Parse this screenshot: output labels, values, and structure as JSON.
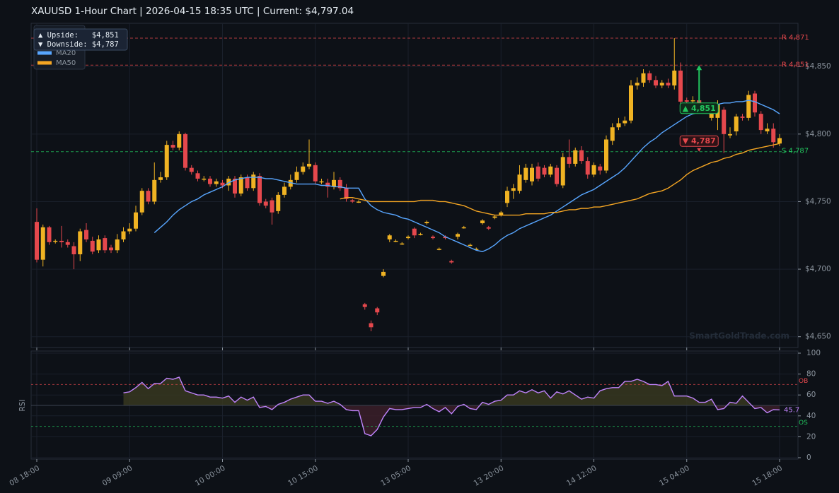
{
  "title": "XAUUSD  1-Hour Chart  |  2026-04-15 18:35 UTC  |  Current: $4,797.04",
  "watermark": "SmartGoldTrade.com",
  "info": [
    "▲ Upside:   $4,851",
    "▼ Downside: $4,787"
  ],
  "chart_data": [
    {
      "type": "candlestick",
      "categories": [
        "08 18:00",
        null,
        null,
        null,
        null,
        null,
        null,
        null,
        null,
        null,
        null,
        null,
        null,
        null,
        null,
        "09 09:00",
        null,
        null,
        null,
        null,
        null,
        null,
        null,
        null,
        null,
        null,
        null,
        null,
        null,
        null,
        "10 00:00",
        null,
        null,
        null,
        null,
        null,
        null,
        null,
        null,
        null,
        null,
        null,
        null,
        null,
        null,
        "10 15:00",
        null,
        null,
        null,
        null,
        null,
        null,
        null,
        null,
        null,
        null,
        null,
        null,
        null,
        null,
        "13 05:00",
        null,
        null,
        null,
        null,
        null,
        null,
        null,
        null,
        null,
        null,
        null,
        null,
        null,
        null,
        "13 20:00",
        null,
        null,
        null,
        null,
        null,
        null,
        null,
        null,
        null,
        null,
        null,
        null,
        null,
        null,
        "14 12:00",
        null,
        null,
        null,
        null,
        null,
        null,
        null,
        null,
        null,
        null,
        null,
        null,
        null,
        null,
        "15 04:00",
        null,
        null,
        null,
        null,
        null,
        null,
        null,
        null,
        null,
        null,
        null,
        null,
        null,
        null,
        "15 18:00"
      ],
      "open": [
        4735,
        4707,
        4731,
        4721,
        4721,
        4720,
        4717,
        4711,
        4729,
        4721,
        4714,
        4723,
        4716,
        4714,
        4722,
        4728,
        4730,
        4742,
        4758,
        4750,
        4766,
        4768,
        4792,
        4790,
        4800,
        4775,
        4771,
        4767,
        4767,
        4763,
        4764,
        4762,
        4767,
        4756,
        4768,
        4760,
        4769,
        4750,
        4751,
        4743,
        4755,
        4761,
        4766,
        4772,
        4776,
        4777,
        4765,
        4764,
        4761,
        4766,
        4760,
        4751,
        4750,
        4674,
        4660,
        4671,
        4695,
        4722,
        4721,
        4719,
        4723,
        4730,
        4726,
        4734,
        4724,
        4715,
        4724,
        4706,
        4724,
        4731,
        4718,
        4715,
        4734,
        4731,
        4738,
        4740,
        4749,
        4758,
        4758,
        4766,
        4765,
        4776,
        4775,
        4770,
        4775,
        4762,
        4783,
        4778,
        4788,
        4780,
        4770,
        4776,
        4773,
        4795,
        4805,
        4808,
        4810,
        4836,
        4838,
        4845,
        4840,
        4836,
        4838,
        4836,
        4847,
        4825,
        4825,
        4825,
        4822,
        4812,
        4812,
        4818,
        4799,
        4802,
        4813,
        4812,
        4830,
        4815,
        4802,
        4804,
        4793
      ],
      "high": [
        4745,
        4733,
        4732,
        4722,
        4732,
        4722,
        4720,
        4730,
        4734,
        4724,
        4725,
        4725,
        4718,
        4726,
        4731,
        4734,
        4747,
        4760,
        4760,
        4779,
        4772,
        4795,
        4795,
        4802,
        4801,
        4777,
        4773,
        4769,
        4769,
        4767,
        4766,
        4769,
        4769,
        4770,
        4770,
        4772,
        4771,
        4752,
        4753,
        4757,
        4764,
        4770,
        4776,
        4779,
        4796,
        4779,
        4767,
        4767,
        4772,
        4768,
        4763,
        4752,
        4751,
        4675,
        4662,
        4672,
        4700,
        4726,
        4722,
        4720,
        4725,
        4731,
        4727,
        4736,
        4725,
        4716,
        4725,
        4707,
        4727,
        4732,
        4719,
        4716,
        4737,
        4732,
        4740,
        4743,
        4761,
        4763,
        4777,
        4778,
        4778,
        4779,
        4777,
        4778,
        4777,
        4786,
        4796,
        4790,
        4791,
        4783,
        4779,
        4778,
        4799,
        4808,
        4812,
        4813,
        4840,
        4842,
        4848,
        4847,
        4843,
        4840,
        4841,
        4871,
        4853,
        4827,
        4828,
        4826,
        4823,
        4820,
        4825,
        4820,
        4805,
        4815,
        4815,
        4832,
        4832,
        4817,
        4808,
        4808,
        4800
      ],
      "low": [
        4705,
        4702,
        4718,
        4719,
        4716,
        4716,
        4700,
        4706,
        4720,
        4711,
        4712,
        4712,
        4712,
        4712,
        4720,
        4726,
        4728,
        4740,
        4748,
        4748,
        4764,
        4766,
        4788,
        4788,
        4773,
        4770,
        4765,
        4765,
        4761,
        4761,
        4760,
        4758,
        4753,
        4754,
        4758,
        4758,
        4747,
        4745,
        4733,
        4741,
        4753,
        4759,
        4764,
        4770,
        4774,
        4763,
        4763,
        4753,
        4759,
        4758,
        4750,
        4749,
        4749,
        4670,
        4654,
        4666,
        4694,
        4720,
        4720,
        4718,
        4722,
        4723,
        4725,
        4733,
        4722,
        4714,
        4722,
        4704,
        4722,
        4730,
        4717,
        4714,
        4733,
        4729,
        4737,
        4739,
        4746,
        4752,
        4756,
        4764,
        4762,
        4765,
        4768,
        4768,
        4761,
        4760,
        4775,
        4776,
        4778,
        4767,
        4768,
        4770,
        4771,
        4792,
        4803,
        4806,
        4808,
        4833,
        4835,
        4838,
        4834,
        4834,
        4834,
        4833,
        4822,
        4822,
        4823,
        4820,
        4818,
        4810,
        4803,
        4786,
        4797,
        4799,
        4810,
        4810,
        4813,
        4800,
        4800,
        4790,
        4791
      ],
      "close": [
        4707,
        4731,
        4720,
        4721,
        4720,
        4718,
        4711,
        4728,
        4722,
        4713,
        4722,
        4714,
        4714,
        4722,
        4728,
        4730,
        4742,
        4758,
        4750,
        4766,
        4768,
        4792,
        4790,
        4800,
        4775,
        4772,
        4767,
        4767,
        4763,
        4765,
        4762,
        4767,
        4756,
        4768,
        4760,
        4770,
        4749,
        4747,
        4742,
        4755,
        4761,
        4766,
        4772,
        4776,
        4778,
        4765,
        4765,
        4761,
        4766,
        4760,
        4752,
        4750,
        4750,
        4672,
        4657,
        4668,
        4698,
        4725,
        4721,
        4719,
        4724,
        4725,
        4726,
        4735,
        4723,
        4715,
        4723,
        4705,
        4726,
        4731,
        4718,
        4715,
        4736,
        4730,
        4739,
        4742,
        4758,
        4760,
        4770,
        4775,
        4775,
        4767,
        4770,
        4776,
        4763,
        4783,
        4778,
        4788,
        4780,
        4770,
        4777,
        4773,
        4796,
        4805,
        4808,
        4810,
        4836,
        4838,
        4845,
        4840,
        4836,
        4838,
        4836,
        4847,
        4824,
        4824,
        4825,
        4822,
        4820,
        4818,
        4822,
        4800,
        4800,
        4813,
        4812,
        4829,
        4816,
        4803,
        4804,
        4794,
        4797
      ],
      "up_color": "#f0b323",
      "down_color": "#e5484d",
      "series": [
        {
          "name": "MA20",
          "color": "#58a6ff",
          "values": [
            null,
            null,
            null,
            null,
            null,
            null,
            null,
            null,
            null,
            null,
            null,
            null,
            null,
            null,
            null,
            null,
            null,
            null,
            null,
            4727,
            4731,
            4735,
            4740,
            4744,
            4747,
            4750,
            4752,
            4755,
            4757,
            4759,
            4761,
            4764,
            4766,
            4767,
            4768,
            4768,
            4768,
            4767,
            4767,
            4766,
            4765,
            4764,
            4763,
            4763,
            4763,
            4763,
            4762,
            4762,
            4761,
            4761,
            4760,
            4760,
            4760,
            4752,
            4747,
            4744,
            4742,
            4741,
            4740,
            4738,
            4737,
            4735,
            4733,
            4731,
            4729,
            4727,
            4724,
            4722,
            4720,
            4718,
            4716,
            4714,
            4713,
            4715,
            4718,
            4722,
            4725,
            4727,
            4730,
            4732,
            4734,
            4736,
            4738,
            4740,
            4743,
            4746,
            4749,
            4752,
            4755,
            4757,
            4759,
            4762,
            4765,
            4768,
            4771,
            4775,
            4780,
            4785,
            4790,
            4794,
            4797,
            4801,
            4804,
            4807,
            4810,
            4813,
            4815,
            4816,
            4816,
            4818,
            4822,
            4823,
            4823,
            4824,
            4824,
            4825,
            4824,
            4822,
            4820,
            4818,
            4815
          ]
        },
        {
          "name": "MA50",
          "color": "#f5a623",
          "values": [
            null,
            null,
            null,
            null,
            null,
            null,
            null,
            null,
            null,
            null,
            null,
            null,
            null,
            null,
            null,
            null,
            null,
            null,
            null,
            null,
            null,
            null,
            null,
            null,
            null,
            null,
            null,
            null,
            null,
            null,
            null,
            null,
            null,
            null,
            null,
            null,
            null,
            null,
            null,
            null,
            null,
            null,
            null,
            null,
            null,
            null,
            null,
            null,
            null,
            4752,
            4753,
            4753,
            4752,
            4751,
            4750,
            4750,
            4750,
            4750,
            4750,
            4750,
            4750,
            4750,
            4751,
            4751,
            4751,
            4750,
            4750,
            4749,
            4748,
            4747,
            4745,
            4743,
            4742,
            4741,
            4740,
            4740,
            4740,
            4740,
            4740,
            4741,
            4741,
            4741,
            4741,
            4742,
            4742,
            4743,
            4744,
            4744,
            4745,
            4745,
            4746,
            4746,
            4747,
            4748,
            4749,
            4750,
            4751,
            4752,
            4754,
            4756,
            4757,
            4758,
            4760,
            4763,
            4766,
            4770,
            4773,
            4775,
            4777,
            4779,
            4780,
            4782,
            4783,
            4785,
            4786,
            4788,
            4789,
            4790,
            4791,
            4792,
            4793
          ]
        }
      ],
      "ylim": [
        4642,
        4882
      ],
      "yticks": [
        {
          "value": 4650,
          "label": "$4,650"
        },
        {
          "value": 4700,
          "label": "$4,700"
        },
        {
          "value": 4750,
          "label": "$4,750"
        },
        {
          "value": 4800,
          "label": "$4,800"
        },
        {
          "value": 4850,
          "label": "$4,850"
        }
      ],
      "grid": true,
      "legend": "upper left",
      "levels": [
        {
          "label": "R 4,871",
          "value": 4871,
          "color": "#e5484d"
        },
        {
          "label": "R 4,851",
          "value": 4851,
          "color": "#e5484d"
        },
        {
          "label": "S 4,787",
          "value": 4787,
          "color": "#22c55e"
        }
      ],
      "annotations": [
        {
          "label": "▲ 4,851",
          "value": 4851,
          "color": "#22c55e"
        },
        {
          "label": "▼ 4,787",
          "value": 4787,
          "color": "#e5484d"
        }
      ]
    },
    {
      "type": "line",
      "y_label": "RSI",
      "color": "#c084fc",
      "values": [
        null,
        null,
        null,
        null,
        null,
        null,
        null,
        null,
        null,
        null,
        null,
        null,
        null,
        null,
        62,
        63,
        67,
        72,
        66,
        71,
        71,
        76,
        75,
        77,
        64,
        62,
        60,
        60,
        58,
        58,
        57,
        59,
        53,
        58,
        55,
        58,
        48,
        49,
        46,
        51,
        53,
        56,
        58,
        60,
        60,
        54,
        54,
        52,
        54,
        51,
        46,
        45,
        45,
        23,
        21,
        27,
        39,
        47,
        46,
        46,
        47,
        48,
        48,
        51,
        47,
        44,
        48,
        42,
        49,
        51,
        47,
        46,
        53,
        51,
        54,
        55,
        60,
        60,
        64,
        62,
        65,
        62,
        64,
        57,
        63,
        61,
        64,
        60,
        56,
        58,
        57,
        64,
        66,
        67,
        67,
        73,
        73,
        75,
        73,
        70,
        70,
        69,
        73,
        59,
        59,
        59,
        57,
        53,
        53,
        56,
        46,
        47,
        53,
        52,
        59,
        53,
        47,
        48,
        43,
        46,
        45.7
      ],
      "value_labels": [
        null,
        null,
        null,
        null,
        null,
        null,
        null,
        null,
        null,
        null,
        null,
        null,
        null,
        null,
        null,
        null,
        null,
        null,
        null,
        null,
        null,
        null,
        null,
        null,
        null,
        null,
        null,
        null,
        null,
        null,
        null,
        null,
        null,
        null,
        null,
        null,
        null,
        null,
        null,
        null,
        null,
        null,
        null,
        null,
        null,
        null,
        null,
        null,
        null,
        null,
        null,
        null,
        null,
        null,
        null,
        null,
        null,
        null,
        null,
        null,
        null,
        null,
        null,
        null,
        null,
        null,
        null,
        null,
        null,
        null,
        null,
        null,
        null,
        null,
        null,
        null,
        null,
        null,
        null,
        null,
        null,
        null,
        null,
        null,
        null,
        null,
        null,
        null,
        null,
        null,
        null,
        null,
        null,
        null,
        null,
        null,
        null,
        null,
        null,
        null,
        null,
        null,
        null,
        null,
        null,
        null,
        null,
        null,
        null,
        null,
        null,
        null,
        null,
        null,
        null,
        null,
        null,
        null,
        null,
        null,
        "45.7"
      ],
      "ylim": [
        0,
        100
      ],
      "yticks": [
        0,
        20,
        40,
        60,
        80,
        100
      ],
      "midline": 50,
      "fill_above_color": "#3a3920",
      "fill_below_color": "#3d1f2b",
      "levels": [
        {
          "label": "OB",
          "value": 70,
          "color": "#e5484d"
        },
        {
          "label": "OS",
          "value": 30,
          "color": "#22c55e"
        }
      ]
    }
  ]
}
